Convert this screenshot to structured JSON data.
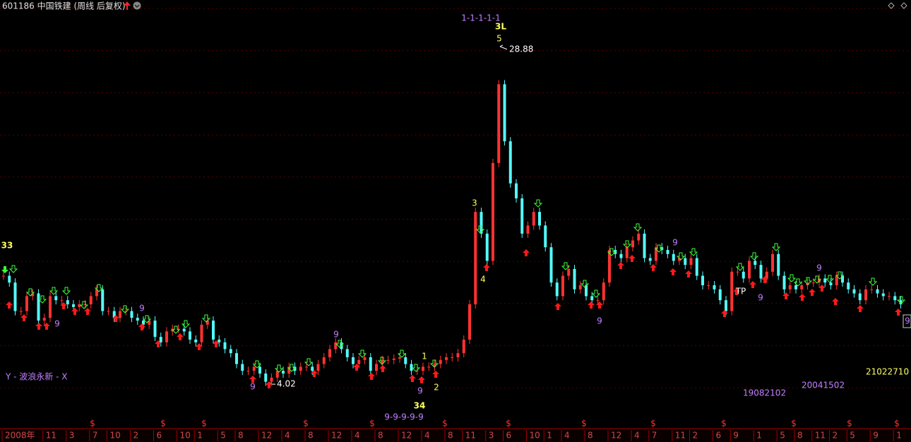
{
  "chart_data": {
    "type": "candle-line",
    "title": "601186 中国铁建 (周线 后复权)",
    "categories": [
      "2008年",
      null,
      null,
      null,
      null,
      null,
      null,
      "11",
      null,
      null,
      null,
      "3",
      null,
      null,
      null,
      "7",
      null,
      null,
      "10",
      null,
      null,
      null,
      "2",
      null,
      null,
      null,
      "6",
      null,
      null,
      null,
      "10",
      null,
      null,
      "1",
      null,
      null,
      null,
      "5",
      null,
      null,
      "8",
      null,
      null,
      null,
      "12",
      null,
      null,
      null,
      "4",
      null,
      null,
      null,
      "8",
      null,
      null,
      null,
      "12",
      null,
      null,
      null,
      "4",
      null,
      null,
      null,
      "8",
      null,
      null,
      null,
      "12",
      null,
      null,
      null,
      "4",
      null,
      null,
      null,
      "8",
      null,
      null,
      "11",
      null,
      null,
      null,
      "3",
      null,
      null,
      "6",
      null,
      null,
      null,
      "10",
      null,
      null,
      "1",
      null,
      null,
      "4",
      null,
      null,
      null,
      "8",
      null,
      null,
      null,
      "12",
      null,
      null,
      null,
      "4",
      null,
      null,
      "7",
      null,
      null,
      null,
      "11",
      null,
      null,
      "2",
      null,
      null,
      null,
      "6",
      null,
      null,
      "9",
      null,
      null,
      null,
      "1",
      null,
      null,
      null,
      "5",
      null,
      null,
      "8",
      null,
      null,
      "11",
      null,
      null,
      "2",
      null,
      null,
      "5",
      null,
      null,
      null,
      "9",
      null,
      null,
      null,
      "1",
      null
    ],
    "values": [
      12.0,
      11.5,
      9.4,
      9.4,
      10.5,
      10.7,
      8.7,
      8.9,
      10.5,
      10.2,
      10.2,
      9.9,
      9.7,
      9.9,
      9.9,
      10.5,
      11.0,
      9.4,
      9.4,
      8.9,
      9.4,
      9.4,
      8.9,
      8.7,
      8.4,
      8.7,
      7.5,
      7.1,
      7.9,
      8.1,
      8.1,
      7.9,
      7.3,
      7.1,
      8.4,
      8.7,
      7.3,
      7.1,
      6.6,
      6.3,
      5.5,
      5.0,
      5.0,
      5.3,
      4.8,
      4.2,
      4.5,
      5.0,
      4.8,
      5.3,
      5.0,
      5.3,
      5.3,
      5.0,
      5.5,
      6.0,
      6.6,
      7.1,
      6.6,
      6.0,
      5.5,
      5.8,
      6.0,
      5.0,
      5.5,
      5.8,
      5.8,
      5.9,
      6.0,
      5.5,
      5.0,
      5.0,
      5.3,
      5.3,
      5.5,
      5.8,
      6.0,
      6.0,
      6.3,
      7.3,
      9.9,
      16.7,
      15.1,
      13.1,
      20.3,
      26.1,
      21.9,
      18.8,
      17.7,
      15.1,
      15.7,
      16.7,
      15.7,
      14.1,
      11.5,
      10.5,
      12.0,
      12.5,
      11.0,
      11.3,
      10.5,
      10.2,
      10.2,
      11.5,
      13.9,
      13.6,
      13.3,
      14.1,
      14.6,
      15.1,
      13.3,
      13.1,
      14.1,
      13.9,
      13.6,
      13.1,
      13.3,
      12.8,
      13.3,
      12.0,
      11.3,
      11.3,
      11.0,
      10.2,
      9.4,
      12.3,
      12.3,
      11.8,
      13.1,
      12.8,
      11.8,
      12.3,
      13.6,
      12.0,
      11.0,
      11.3,
      11.0,
      11.3,
      11.5,
      11.5,
      11.8,
      11.5,
      11.3,
      12.0,
      11.5,
      11.0,
      10.7,
      10.2,
      11.0,
      11.0,
      10.7,
      10.5,
      10.5,
      10.2,
      9.9
    ],
    "up_color": "#ff3232",
    "down_color": "#54fcfc",
    "ylim": [
      1.32,
      31.68
    ],
    "high": 28.88,
    "low": 4.02,
    "wave_marks": [
      "33",
      "34",
      "3L",
      "1-1-1-1-1",
      "9-9-9-9-9",
      "5",
      "3",
      "4",
      "1",
      "2",
      "TP"
    ],
    "count_mark": "9",
    "indicator_label": "Y - 波浪永新 - X",
    "signal_codes": [
      "21022710",
      "19082102",
      "20041502"
    ],
    "dividend_marker": "$"
  }
}
